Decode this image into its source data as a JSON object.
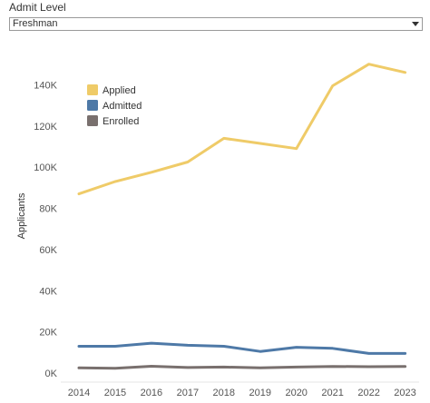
{
  "filter": {
    "label": "Admit Level",
    "selected": "Freshman"
  },
  "chart_data": {
    "type": "line",
    "title": "",
    "xlabel": "",
    "ylabel": "Applicants",
    "x": [
      "2014",
      "2015",
      "2016",
      "2017",
      "2018",
      "2019",
      "2020",
      "2021",
      "2022",
      "2023"
    ],
    "ylim": [
      0,
      160000
    ],
    "yticks": [
      0,
      20000,
      40000,
      60000,
      80000,
      100000,
      120000,
      140000
    ],
    "ytick_labels": [
      "0K",
      "20K",
      "40K",
      "60K",
      "80K",
      "100K",
      "120K",
      "140K"
    ],
    "grid": false,
    "legend_position": "top-left",
    "series": [
      {
        "name": "Applied",
        "color": "#EFCB68",
        "values": [
          87000,
          93000,
          97500,
          102500,
          114000,
          111500,
          109000,
          139500,
          150000,
          146000
        ]
      },
      {
        "name": "Admitted",
        "color": "#4E79A7",
        "values": [
          13000,
          13000,
          14500,
          13500,
          13000,
          10500,
          12500,
          12000,
          9500,
          9500
        ]
      },
      {
        "name": "Enrolled",
        "color": "#79706E",
        "values": [
          2500,
          2300,
          3300,
          2700,
          2900,
          2500,
          2900,
          3200,
          3100,
          3200
        ]
      }
    ]
  }
}
